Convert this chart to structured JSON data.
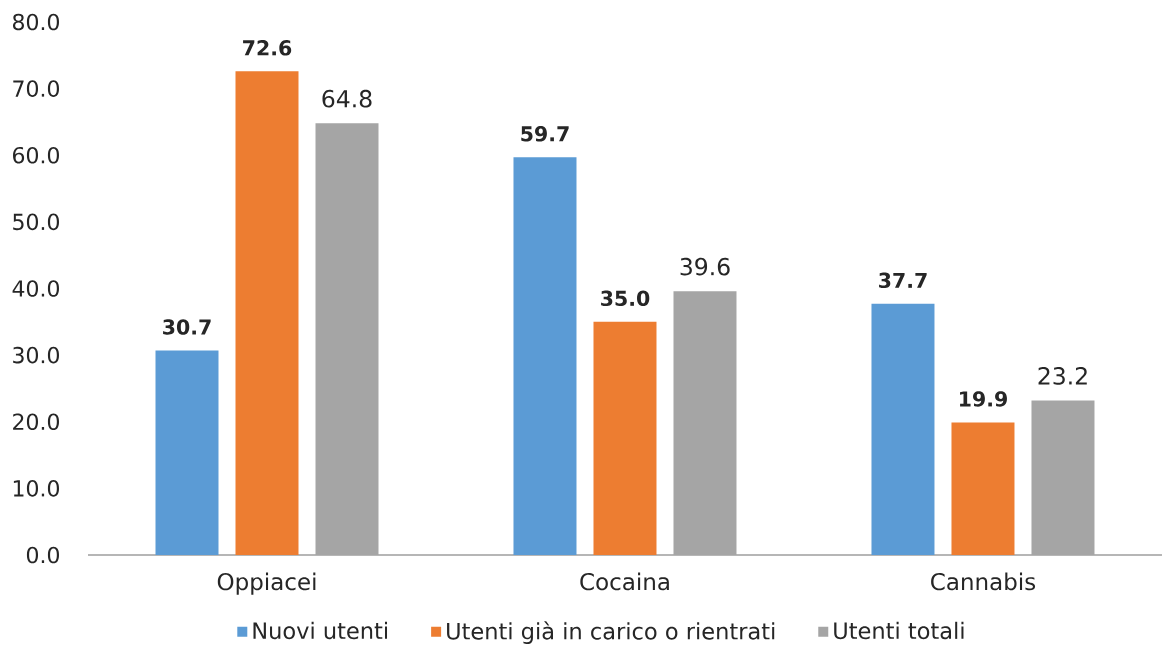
{
  "chart_data": {
    "type": "bar",
    "categories": [
      "Oppiacei",
      "Cocaina",
      "Cannabis"
    ],
    "series": [
      {
        "name": "Nuovi utenti",
        "color": "#5b9bd5",
        "values": [
          30.7,
          59.7,
          37.7
        ],
        "value_labels": [
          "30.7",
          "59.7",
          "37.7"
        ]
      },
      {
        "name": "Utenti già in carico o rientrati",
        "color": "#ed7d31",
        "values": [
          72.6,
          35.0,
          19.9
        ],
        "value_labels": [
          "72.6",
          "35.0",
          "19.9"
        ]
      },
      {
        "name": "Utenti totali",
        "color": "#a5a5a5",
        "values": [
          64.8,
          39.6,
          23.2
        ],
        "value_labels": [
          "64.8",
          "39.6",
          "23.2"
        ]
      }
    ],
    "ylim": [
      0,
      80
    ],
    "yticks": [
      {
        "value": 0,
        "label": "0.0"
      },
      {
        "value": 10,
        "label": "10.0"
      },
      {
        "value": 20,
        "label": "20.0"
      },
      {
        "value": 30,
        "label": "30.0"
      },
      {
        "value": 40,
        "label": "40.0"
      },
      {
        "value": 50,
        "label": "50.0"
      },
      {
        "value": 60,
        "label": "60.0"
      },
      {
        "value": 70,
        "label": "70.0"
      },
      {
        "value": 80,
        "label": "80.0"
      }
    ],
    "legend": "bottom"
  }
}
